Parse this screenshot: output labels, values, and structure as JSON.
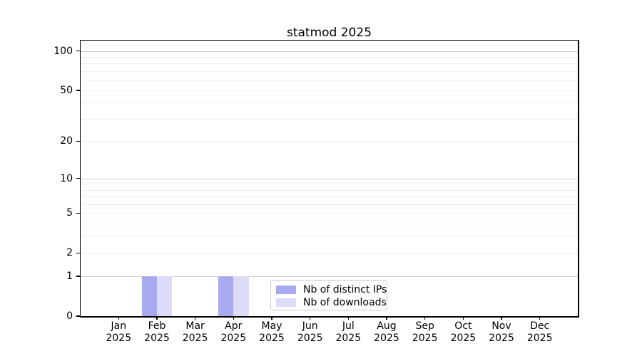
{
  "title": "statmod 2025",
  "chart_data": {
    "type": "bar",
    "title": "statmod 2025",
    "categories": [
      "Jan 2025",
      "Feb 2025",
      "Mar 2025",
      "Apr 2025",
      "May 2025",
      "Jun 2025",
      "Jul 2025",
      "Aug 2025",
      "Sep 2025",
      "Oct 2025",
      "Nov 2025",
      "Dec 2025"
    ],
    "series": [
      {
        "name": "Nb of distinct IPs",
        "color": "#a9a9f2",
        "values": [
          0,
          1,
          0,
          1,
          0,
          0,
          0,
          0,
          0,
          0,
          0,
          0
        ]
      },
      {
        "name": "Nb of downloads",
        "color": "#dcdcf8",
        "values": [
          0,
          1,
          0,
          1,
          0,
          0,
          0,
          0,
          0,
          0,
          0,
          0
        ]
      }
    ],
    "xlabel": "",
    "ylabel": "",
    "yticks": [
      0,
      1,
      2,
      5,
      10,
      20,
      50,
      100
    ],
    "ylim": [
      0,
      120
    ],
    "y_scale": "log10(1+y)",
    "grid": "horizontal",
    "grid_major_values": [
      1,
      10,
      100
    ],
    "grid_minor_values": [
      2,
      3,
      4,
      5,
      6,
      7,
      8,
      9,
      20,
      30,
      40,
      50,
      60,
      70,
      80,
      90
    ],
    "legend": {
      "position": "bottom-center-inside",
      "items": [
        "Nb of distinct IPs",
        "Nb of downloads"
      ]
    },
    "colors": {
      "background": "#ffffff",
      "spine": "#000000",
      "text": "#000000",
      "grid_major": "#cfcfcf",
      "grid_minor": "#efefef",
      "legend_border": "#c9c9c9"
    }
  }
}
